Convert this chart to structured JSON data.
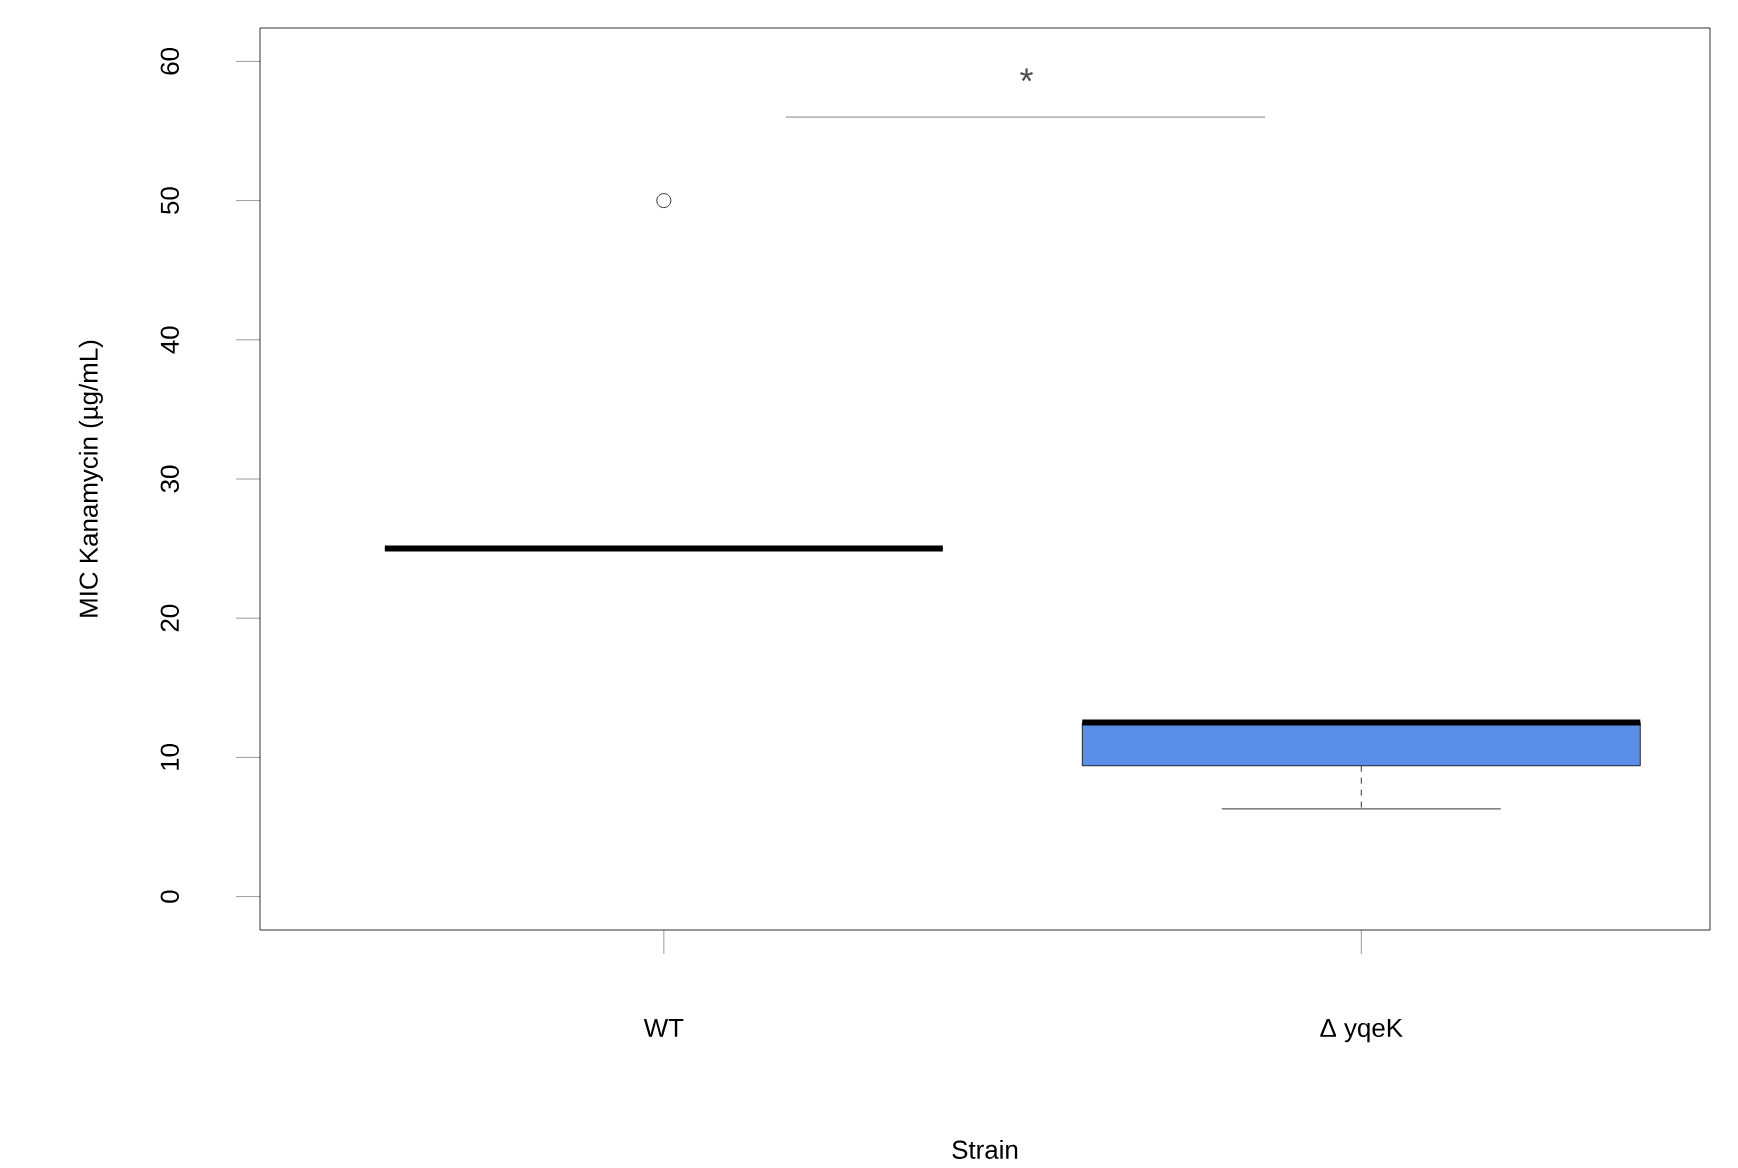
{
  "chart_data": {
    "type": "box",
    "xlabel": "Strain",
    "ylabel": "MIC Kanamycin (µg/mL)",
    "categories": [
      "WT",
      "Δ yqeK"
    ],
    "boxes": [
      {
        "low": 25,
        "q1": 25,
        "median": 25,
        "q3": 25,
        "high": 25,
        "outliers": [
          50
        ]
      },
      {
        "low": 6.3,
        "q1": 9.4,
        "median": 12.5,
        "q3": 12.5,
        "high": 12.5
      }
    ],
    "colors": [
      null,
      "#5b8ee6"
    ],
    "ylim": [
      -2.4,
      62.4
    ],
    "yticks": [
      0,
      10,
      20,
      30,
      40,
      50,
      60
    ],
    "annotations": [
      "*"
    ],
    "grid": false
  }
}
